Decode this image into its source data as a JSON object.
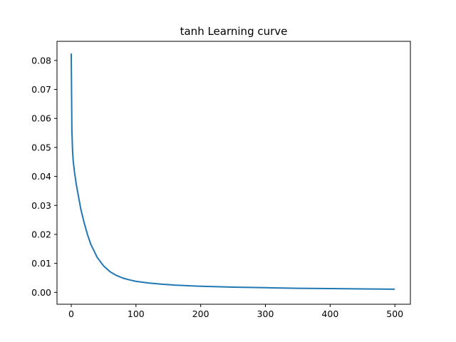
{
  "chart_data": {
    "type": "line",
    "title": "tanh Learning curve",
    "xlabel": "",
    "ylabel": "",
    "xlim": [
      -22,
      524
    ],
    "ylim": [
      -0.0041,
      0.0866
    ],
    "grid": false,
    "legend": "none",
    "line_color": "#1f77b4",
    "xticks": [
      0,
      100,
      200,
      300,
      400,
      500
    ],
    "xtick_labels": [
      "0",
      "100",
      "200",
      "300",
      "400",
      "500"
    ],
    "yticks": [
      0.0,
      0.01,
      0.02,
      0.03,
      0.04,
      0.05,
      0.06,
      0.07,
      0.08
    ],
    "ytick_labels": [
      "0.00",
      "0.01",
      "0.02",
      "0.03",
      "0.04",
      "0.05",
      "0.06",
      "0.07",
      "0.08"
    ],
    "series": [
      {
        "x": [
          0,
          1,
          2,
          3,
          5,
          8,
          10,
          15,
          20,
          25,
          30,
          40,
          50,
          60,
          70,
          80,
          90,
          100,
          120,
          140,
          160,
          180,
          200,
          250,
          300,
          350,
          400,
          450,
          499
        ],
        "y": [
          0.0822,
          0.056,
          0.049,
          0.0455,
          0.0415,
          0.037,
          0.0345,
          0.0285,
          0.024,
          0.02,
          0.0167,
          0.0121,
          0.0091,
          0.0071,
          0.0058,
          0.0049,
          0.0043,
          0.0038,
          0.0032,
          0.0028,
          0.0025,
          0.0023,
          0.0021,
          0.0018,
          0.0016,
          0.0014,
          0.0013,
          0.0012,
          0.0011
        ]
      }
    ]
  }
}
